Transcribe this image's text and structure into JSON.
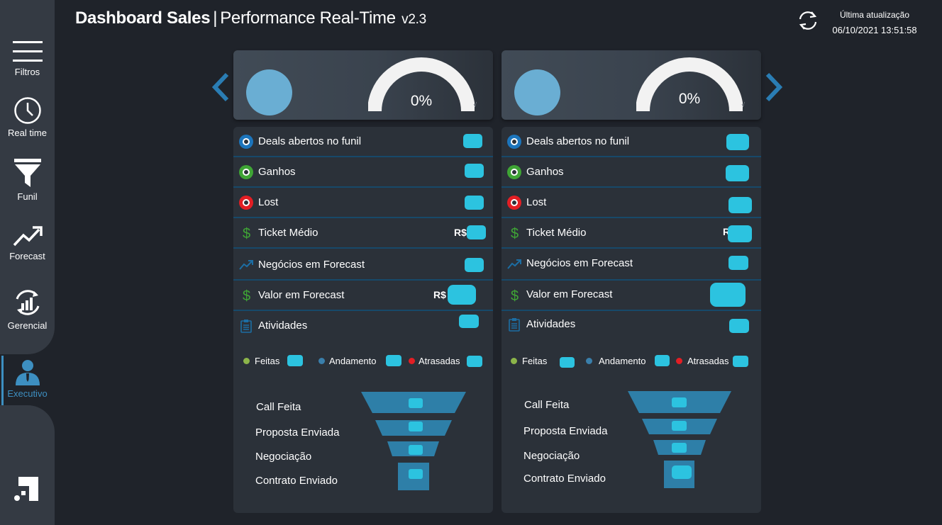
{
  "header": {
    "title_main": "Dashboard Sales",
    "separator": "|",
    "title_sub": "Performance Real-Time",
    "version": "v2.3",
    "update_label": "Última atualização",
    "update_value": "06/10/2021 13:51:58"
  },
  "sidebar": {
    "items": [
      {
        "label": "Filtros",
        "icon": "hamburger-icon"
      },
      {
        "label": "Real time",
        "icon": "clock-icon"
      },
      {
        "label": "Funil",
        "icon": "funnel-icon"
      },
      {
        "label": "Forecast",
        "icon": "trend-up-icon"
      },
      {
        "label": "Gerencial",
        "icon": "bar-chart-cycle-icon"
      },
      {
        "label": "Executivo",
        "icon": "user-icon",
        "active": true
      }
    ],
    "logo": "brand-logo-icon"
  },
  "colors": {
    "accent": "#2cc3e0",
    "blue_status": "#1c75bc",
    "green_status": "#3fa535",
    "red_status": "#e31e24",
    "gauge": "#f2f2f2",
    "avatar": "#6aaed3"
  },
  "cards": [
    {
      "gauge_value": "0%",
      "gauge_mini": "√",
      "rows": [
        {
          "label": "Deals abertos no funil",
          "icon": "blue-status-icon",
          "prefix": ""
        },
        {
          "label": "Ganhos",
          "icon": "green-status-icon",
          "prefix": ""
        },
        {
          "label": "Lost",
          "icon": "red-status-icon",
          "prefix": ""
        },
        {
          "label": "Ticket Médio",
          "icon": "dollar-icon",
          "prefix": "R$"
        },
        {
          "label": "Negócios em Forecast",
          "icon": "trend-icon",
          "prefix": ""
        },
        {
          "label": "Valor em Forecast",
          "icon": "dollar-icon",
          "prefix": "R$"
        },
        {
          "label": "Atividades",
          "icon": "clipboard-icon",
          "prefix": ""
        }
      ],
      "legend": [
        {
          "label": "Feitas",
          "color": "#8cb54a"
        },
        {
          "label": "Andamento",
          "color": "#3a7fab"
        },
        {
          "label": "Atrasadas",
          "color": "#e31e24"
        }
      ],
      "funnel": [
        "Call Feita",
        "Proposta Enviada",
        "Negociação",
        "Contrato Enviado"
      ]
    },
    {
      "gauge_value": "0%",
      "gauge_mini": "√",
      "rows": [
        {
          "label": "Deals abertos no funil",
          "icon": "blue-status-icon",
          "prefix": ""
        },
        {
          "label": "Ganhos",
          "icon": "green-status-icon",
          "prefix": ""
        },
        {
          "label": "Lost",
          "icon": "red-status-icon",
          "prefix": ""
        },
        {
          "label": "Ticket Médio",
          "icon": "dollar-icon",
          "prefix": "R"
        },
        {
          "label": "Negócios em Forecast",
          "icon": "trend-icon",
          "prefix": ""
        },
        {
          "label": "Valor em Forecast",
          "icon": "dollar-icon",
          "prefix": ""
        },
        {
          "label": "Atividades",
          "icon": "clipboard-icon",
          "prefix": ""
        }
      ],
      "legend": [
        {
          "label": "Feitas",
          "color": "#8cb54a"
        },
        {
          "label": "Andamento",
          "color": "#3a7fab"
        },
        {
          "label": "Atrasadas",
          "color": "#e31e24"
        }
      ],
      "funnel": [
        "Call Feita",
        "Proposta Enviada",
        "Negociação",
        "Contrato Enviado"
      ]
    }
  ]
}
